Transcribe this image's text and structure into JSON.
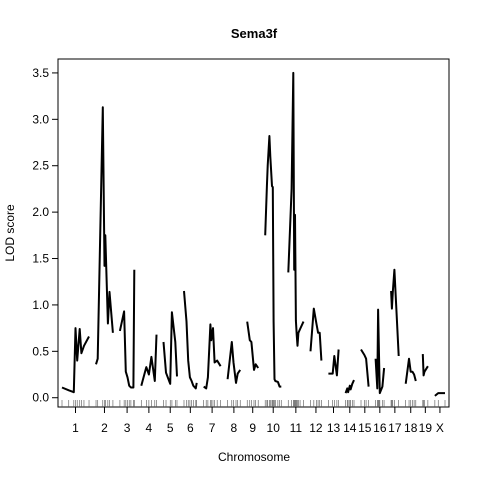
{
  "chart_data": {
    "type": "line",
    "title": "Sema3f",
    "xlabel": "Chromosome",
    "ylabel": "LOD score",
    "ylim": [
      -0.1,
      3.65
    ],
    "yticks": [
      0.0,
      0.5,
      1.0,
      1.5,
      2.0,
      2.5,
      3.0,
      3.5
    ],
    "ytick_labels": [
      "0.0",
      "0.5",
      "1.0",
      "1.5",
      "2.0",
      "2.5",
      "3.0",
      "3.5"
    ],
    "grid": false,
    "legend": "none",
    "chromosomes": [
      {
        "name": "1",
        "x": [
          0,
          8,
          14,
          16,
          18,
          21,
          23,
          26,
          32
        ],
        "y": [
          0.11,
          0.08,
          0.06,
          0.75,
          0.4,
          0.74,
          0.48,
          0.56,
          0.66
        ]
      },
      {
        "name": "2",
        "x": [
          0,
          2,
          8,
          10,
          11,
          14,
          16,
          20
        ],
        "y": [
          0.36,
          0.42,
          3.13,
          1.42,
          1.75,
          0.8,
          1.14,
          0.7
        ]
      },
      {
        "name": "3",
        "x": [
          0,
          5,
          7,
          9,
          11,
          13,
          16,
          17
        ],
        "y": [
          0.72,
          0.93,
          0.28,
          0.22,
          0.13,
          0.11,
          0.11,
          1.38
        ]
      },
      {
        "name": "4",
        "x": [
          0,
          6,
          9,
          12,
          16,
          18
        ],
        "y": [
          0.13,
          0.33,
          0.25,
          0.44,
          0.18,
          0.68
        ]
      },
      {
        "name": "5",
        "x": [
          0,
          3,
          8,
          10,
          14,
          16
        ],
        "y": [
          0.6,
          0.27,
          0.15,
          0.92,
          0.6,
          0.23
        ]
      },
      {
        "name": "6",
        "x": [
          0,
          3,
          5,
          7,
          9,
          11,
          14,
          15
        ],
        "y": [
          1.15,
          0.82,
          0.4,
          0.22,
          0.18,
          0.13,
          0.1,
          0.16
        ]
      },
      {
        "name": "7",
        "x": [
          0,
          3,
          5,
          8,
          9,
          11,
          13,
          16,
          20
        ],
        "y": [
          0.12,
          0.1,
          0.22,
          0.79,
          0.62,
          0.75,
          0.38,
          0.4,
          0.34
        ]
      },
      {
        "name": "8",
        "x": [
          0,
          5,
          7,
          10,
          12,
          15
        ],
        "y": [
          0.2,
          0.6,
          0.38,
          0.16,
          0.26,
          0.3
        ]
      },
      {
        "name": "9",
        "x": [
          0,
          3,
          5,
          8,
          10,
          13
        ],
        "y": [
          0.82,
          0.62,
          0.6,
          0.3,
          0.36,
          0.32
        ]
      },
      {
        "name": "10",
        "x": [
          0,
          2,
          3,
          5,
          6,
          8,
          9,
          10,
          11,
          12,
          15,
          17,
          19
        ],
        "y": [
          1.75,
          2.28,
          2.5,
          2.82,
          2.6,
          2.28,
          2.27,
          0.82,
          0.2,
          0.18,
          0.17,
          0.12,
          0.12
        ]
      },
      {
        "name": "11",
        "x": [
          0,
          4,
          6,
          7,
          8,
          9,
          10,
          11,
          12,
          14,
          18
        ],
        "y": [
          1.35,
          2.25,
          3.5,
          1.38,
          1.97,
          0.83,
          0.68,
          0.56,
          0.7,
          0.74,
          0.82
        ]
      },
      {
        "name": "12",
        "x": [
          0,
          4,
          7,
          9,
          11,
          13
        ],
        "y": [
          0.5,
          0.96,
          0.8,
          0.7,
          0.7,
          0.4
        ]
      },
      {
        "name": "13",
        "x": [
          0,
          5,
          7,
          10,
          12
        ],
        "y": [
          0.26,
          0.26,
          0.45,
          0.24,
          0.52
        ]
      },
      {
        "name": "14",
        "x": [
          0,
          2,
          3,
          5,
          6,
          8,
          10
        ],
        "y": [
          0.05,
          0.1,
          0.06,
          0.13,
          0.09,
          0.15,
          0.19
        ]
      },
      {
        "name": "15",
        "x": [
          0,
          4,
          6,
          9
        ],
        "y": [
          0.52,
          0.46,
          0.42,
          0.12
        ]
      },
      {
        "name": "16",
        "x": [
          0,
          2,
          3,
          4,
          5,
          8,
          10
        ],
        "y": [
          0.42,
          0.1,
          0.95,
          0.46,
          0.05,
          0.12,
          0.32
        ]
      },
      {
        "name": "17",
        "x": [
          0,
          1,
          2,
          4,
          9
        ],
        "y": [
          1.15,
          0.96,
          1.14,
          1.38,
          0.45
        ]
      },
      {
        "name": "18",
        "x": [
          0,
          4,
          6,
          8,
          10,
          12
        ],
        "y": [
          0.15,
          0.42,
          0.28,
          0.28,
          0.25,
          0.18
        ]
      },
      {
        "name": "19",
        "x": [
          0,
          1,
          2,
          6
        ],
        "y": [
          0.47,
          0.24,
          0.28,
          0.34
        ]
      },
      {
        "name": "X",
        "x": [
          0,
          4,
          12
        ],
        "y": [
          0.02,
          0.05,
          0.05
        ]
      }
    ]
  }
}
